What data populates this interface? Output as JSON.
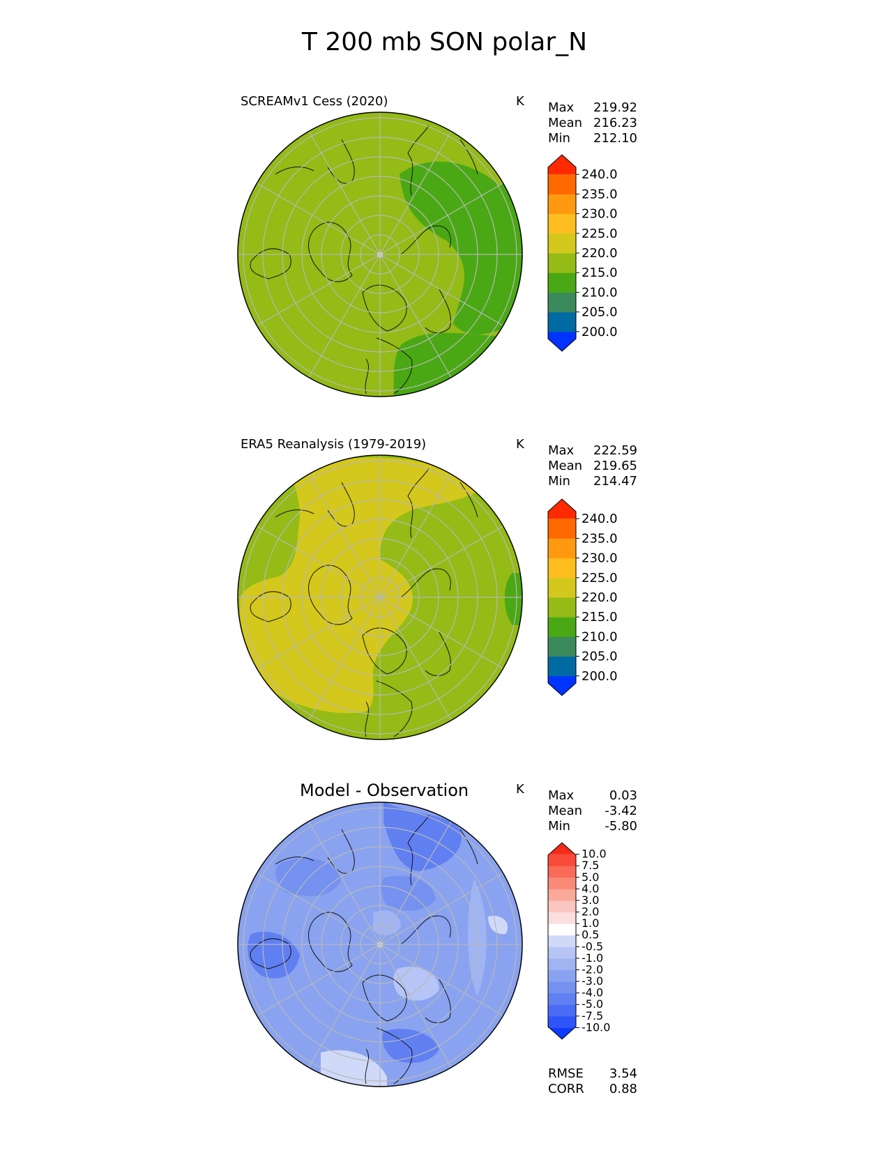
{
  "figure_title": "T 200 mb SON polar_N",
  "panels": [
    {
      "title": "SCREAMv1 Cess (2020)",
      "unit": "K",
      "stats": [
        {
          "label": "Max",
          "value": "219.92"
        },
        {
          "label": "Mean",
          "value": "216.23"
        },
        {
          "label": "Min",
          "value": "212.10"
        }
      ],
      "colorbar": {
        "colors": [
          "#0033ff",
          "#006aa3",
          "#3a8a5c",
          "#4aa814",
          "#94bb16",
          "#d4c81c",
          "#ffbe20",
          "#ff9a10",
          "#ff6a00",
          "#ff2a00"
        ],
        "ticks": [
          "200.0",
          "205.0",
          "210.0",
          "215.0",
          "220.0",
          "225.0",
          "230.0",
          "235.0",
          "240.0"
        ]
      }
    },
    {
      "title": "ERA5 Reanalysis (1979-2019)",
      "unit": "K",
      "stats": [
        {
          "label": "Max",
          "value": "222.59"
        },
        {
          "label": "Mean",
          "value": "219.65"
        },
        {
          "label": "Min",
          "value": "214.47"
        }
      ],
      "colorbar": {
        "colors": [
          "#0033ff",
          "#006aa3",
          "#3a8a5c",
          "#4aa814",
          "#94bb16",
          "#d4c81c",
          "#ffbe20",
          "#ff9a10",
          "#ff6a00",
          "#ff2a00"
        ],
        "ticks": [
          "200.0",
          "205.0",
          "210.0",
          "215.0",
          "220.0",
          "225.0",
          "230.0",
          "235.0",
          "240.0"
        ]
      }
    },
    {
      "title": "Model - Observation",
      "unit": "K",
      "stats": [
        {
          "label": "Max",
          "value": "0.03"
        },
        {
          "label": "Mean",
          "value": "-3.42"
        },
        {
          "label": "Min",
          "value": "-5.80"
        }
      ],
      "extra_stats": [
        {
          "label": "RMSE",
          "value": "3.54"
        },
        {
          "label": "CORR",
          "value": "0.88"
        }
      ],
      "colorbar": {
        "colors": [
          "#0d3bff",
          "#2f55f8",
          "#4a6cf4",
          "#6080f2",
          "#7592f0",
          "#8aa3f0",
          "#a0b4f2",
          "#b6c5f5",
          "#d0daf8",
          "#ffffff",
          "#fbdede",
          "#fcc6c0",
          "#fba898",
          "#fa8a78",
          "#f96a58",
          "#f84a38",
          "#f52a18"
        ],
        "ticks": [
          "-10.0",
          "-7.5",
          "-5.0",
          "-4.0",
          "-3.0",
          "-2.0",
          "-1.0",
          "-0.5",
          "0.5",
          "1.0",
          "2.0",
          "3.0",
          "4.0",
          "5.0",
          "7.5",
          "10.0"
        ]
      }
    }
  ]
}
